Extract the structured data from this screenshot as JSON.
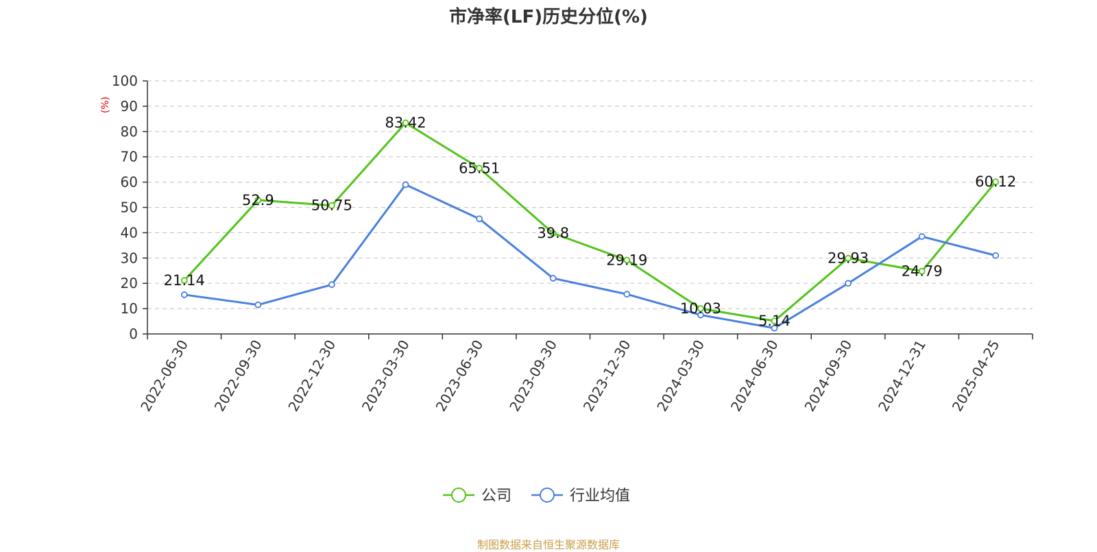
{
  "title": "市净率(LF)历史分位(%)",
  "footer": "制图数据来自恒生聚源数据库",
  "chart_data": {
    "type": "line",
    "title": "市净率(LF)历史分位(%)",
    "ylabel": "(%)",
    "xlabel": "",
    "ylim": [
      0,
      100
    ],
    "yticks": [
      0,
      10,
      20,
      30,
      40,
      50,
      60,
      70,
      80,
      90,
      100
    ],
    "grid": true,
    "legend_position": "bottom",
    "categories": [
      "2022-06-30",
      "2022-09-30",
      "2022-12-30",
      "2023-03-30",
      "2023-06-30",
      "2023-09-30",
      "2023-12-30",
      "2024-03-30",
      "2024-06-30",
      "2024-09-30",
      "2024-12-31",
      "2025-04-25"
    ],
    "series": [
      {
        "name": "公司",
        "color": "#52c41a",
        "values": [
          21.14,
          52.9,
          50.75,
          83.42,
          65.51,
          39.8,
          29.19,
          10.03,
          5.14,
          29.93,
          24.79,
          60.12
        ],
        "labels": [
          "21.14",
          "52.9",
          "50.75",
          "83.42",
          "65.51",
          "39.8",
          "29.19",
          "10.03",
          "5.14",
          "29.93",
          "24.79",
          "60.12"
        ]
      },
      {
        "name": "行业均值",
        "color": "#4a80e0",
        "values": [
          15.5,
          11.5,
          19.5,
          59,
          45.5,
          22,
          15.7,
          7.5,
          2.3,
          20,
          38.5,
          31
        ]
      }
    ]
  }
}
